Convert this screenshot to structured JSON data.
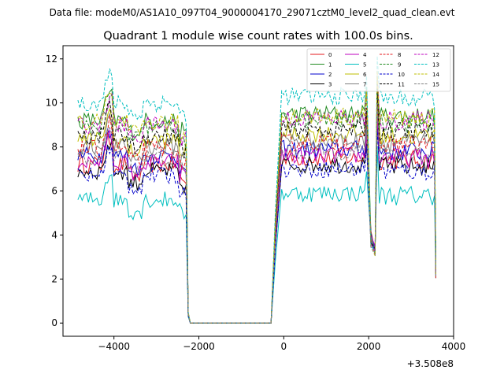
{
  "chart_data": {
    "type": "line",
    "suptitle": "Data file: modeM0/AS1A10_097T04_9000004170_29071cztM0_level2_quad_clean.evt",
    "title": "Quadrant 1 module wise count rates with 100.0s bins.",
    "xlabel": "",
    "ylabel": "",
    "x_offset_label": "+3.508e8",
    "xlim": [
      -5200,
      4000
    ],
    "ylim": [
      -0.6,
      12.6
    ],
    "x_ticks": [
      -4000,
      -2000,
      0,
      2000,
      4000
    ],
    "x_tick_labels": [
      "−4000",
      "−2000",
      "0",
      "2000",
      "4000"
    ],
    "y_ticks": [
      0,
      2,
      4,
      6,
      8,
      10,
      12
    ],
    "y_tick_labels": [
      "0",
      "2",
      "4",
      "6",
      "8",
      "10",
      "12"
    ],
    "grid": false,
    "legend_position": "top-right",
    "segments": [
      {
        "x_start": -4850,
        "x_end": -2300
      },
      {
        "x_start": -2200,
        "x_end": -250
      },
      {
        "x_start": -200,
        "x_end": 1900
      },
      {
        "x_start": 1950,
        "x_end": 2150
      },
      {
        "x_start": 2250,
        "x_end": 3550
      }
    ],
    "series": [
      {
        "name": "0",
        "color": "#e41a1c",
        "dash": false,
        "base": 7.2
      },
      {
        "name": "1",
        "color": "#228b22",
        "dash": false,
        "base": 9.2
      },
      {
        "name": "2",
        "color": "#0000cc",
        "dash": false,
        "base": 7.6
      },
      {
        "name": "3",
        "color": "#000000",
        "dash": false,
        "base": 6.9
      },
      {
        "name": "4",
        "color": "#bf00bf",
        "dash": false,
        "base": 7.3
      },
      {
        "name": "5",
        "color": "#00bfbf",
        "dash": false,
        "base": 5.6
      },
      {
        "name": "6",
        "color": "#bfbf00",
        "dash": false,
        "base": 8.3
      },
      {
        "name": "7",
        "color": "#808080",
        "dash": false,
        "base": 8.0
      },
      {
        "name": "8",
        "color": "#e41a1c",
        "dash": true,
        "base": 7.9
      },
      {
        "name": "9",
        "color": "#228b22",
        "dash": true,
        "base": 8.9
      },
      {
        "name": "10",
        "color": "#0000cc",
        "dash": true,
        "base": 6.7
      },
      {
        "name": "11",
        "color": "#000000",
        "dash": true,
        "base": 8.5
      },
      {
        "name": "12",
        "color": "#bf00bf",
        "dash": true,
        "base": 9.0
      },
      {
        "name": "13",
        "color": "#00bfbf",
        "dash": true,
        "base": 10.0
      },
      {
        "name": "14",
        "color": "#bfbf00",
        "dash": true,
        "base": 9.1
      },
      {
        "name": "15",
        "color": "#808080",
        "dash": true,
        "base": 7.5
      }
    ]
  }
}
